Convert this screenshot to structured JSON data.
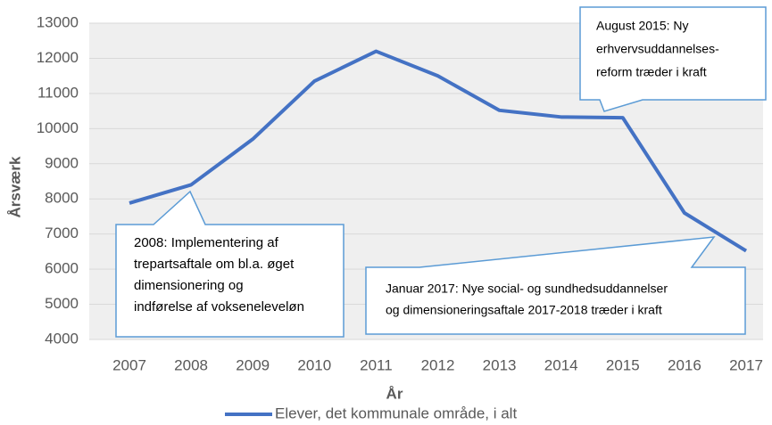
{
  "chart_data": {
    "type": "line",
    "categories": [
      "2007",
      "2008",
      "2009",
      "2010",
      "2011",
      "2012",
      "2013",
      "2014",
      "2015",
      "2016",
      "2017"
    ],
    "series": [
      {
        "name": "Elever, det kommunale område, i alt",
        "color": "#4472c4",
        "values": [
          7880,
          8400,
          9700,
          11350,
          12200,
          11500,
          10520,
          10330,
          10310,
          7600,
          6520
        ]
      }
    ],
    "ylim": [
      4000,
      13000
    ],
    "yticks": [
      4000,
      5000,
      6000,
      7000,
      8000,
      9000,
      10000,
      11000,
      12000,
      13000
    ],
    "grid": true,
    "legend": "bottom",
    "xlabel": "År",
    "ylabel": "Årsværk",
    "annotations": [
      {
        "lines": [
          "2008: Implementering af",
          "trepartsaftale om bl.a. øget",
          "dimensionering og",
          "indførelse af vokseneleveløn"
        ]
      },
      {
        "lines": [
          "August 2015: Ny",
          "erhvervsuddannelses-",
          "reform træder i kraft"
        ]
      },
      {
        "lines": [
          "Januar 2017: Nye social- og sundhedsuddannelser",
          "og dimensioneringsaftale 2017-2018 træder i kraft"
        ]
      }
    ]
  }
}
